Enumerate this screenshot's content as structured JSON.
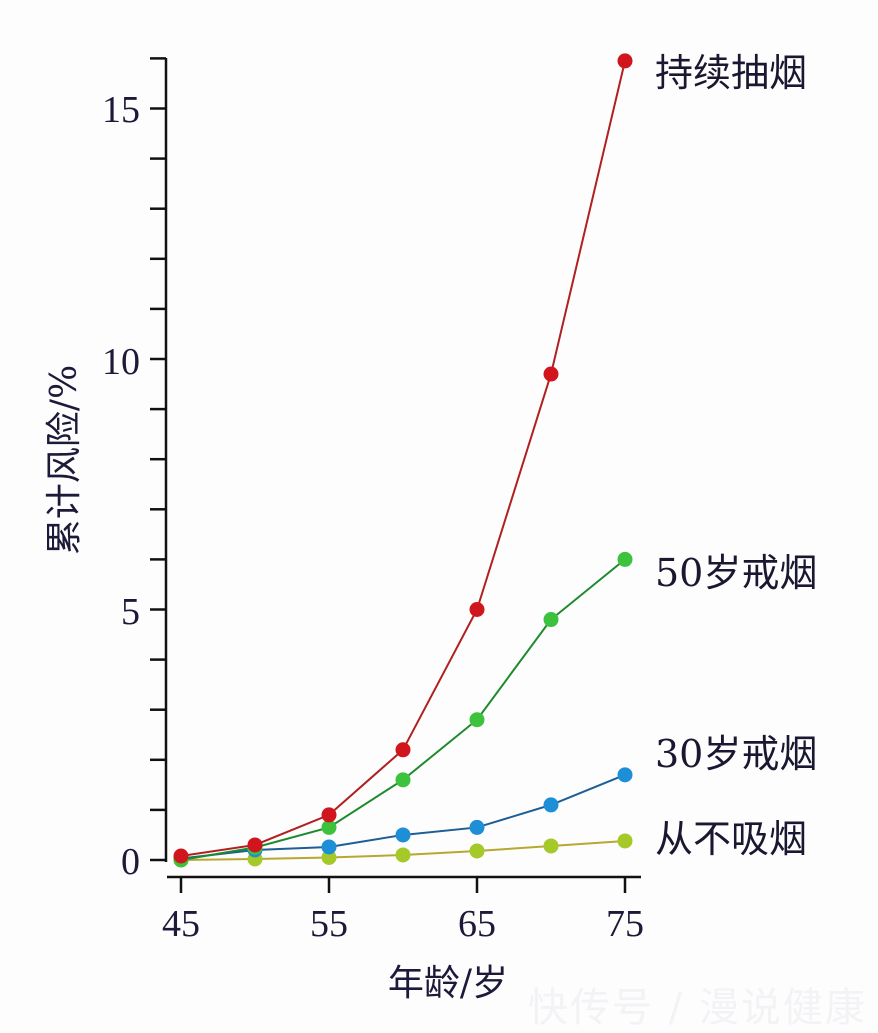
{
  "chart_data": {
    "type": "line",
    "title": "",
    "xlabel": "年龄/岁",
    "ylabel": "累计风险/%",
    "x": [
      45,
      50,
      55,
      60,
      65,
      70,
      75
    ],
    "xticks": [
      45,
      55,
      65,
      75
    ],
    "yticks": [
      0,
      5,
      10,
      15
    ],
    "ylim": [
      0,
      16
    ],
    "xlim": [
      44,
      76
    ],
    "grid": false,
    "legend_position": "inline-right",
    "series": [
      {
        "name": "持续抽烟",
        "color": "#d0161c",
        "line_color": "#b02020",
        "values": [
          0.08,
          0.3,
          0.9,
          2.2,
          5.0,
          9.7,
          15.95
        ]
      },
      {
        "name": "50岁戒烟",
        "color": "#3cc23c",
        "line_color": "#1e8a2e",
        "values": [
          0.0,
          0.25,
          0.65,
          1.6,
          2.8,
          4.8,
          6.0
        ]
      },
      {
        "name": "30岁戒烟",
        "color": "#1e8fd6",
        "line_color": "#1d5e94",
        "values": [
          0.03,
          0.2,
          0.26,
          0.5,
          0.65,
          1.1,
          1.7
        ]
      },
      {
        "name": "从不吸烟",
        "color": "#a6c92a",
        "line_color": "#b8a830",
        "values": [
          0.0,
          0.02,
          0.05,
          0.1,
          0.18,
          0.28,
          0.38
        ]
      }
    ]
  },
  "labels": {
    "ytick_15": "15",
    "ytick_10": "10",
    "ytick_5": "5",
    "ytick_0": "0",
    "xtick_45": "45",
    "xtick_55": "55",
    "xtick_65": "65",
    "xtick_75": "75",
    "xlabel": "年龄/岁",
    "ylabel": "累计风险/%",
    "series_0": "持续抽烟",
    "series_1": "50岁戒烟",
    "series_2": "30岁戒烟",
    "series_3": "从不吸烟"
  },
  "watermark": "快传号 / 漫说健康"
}
